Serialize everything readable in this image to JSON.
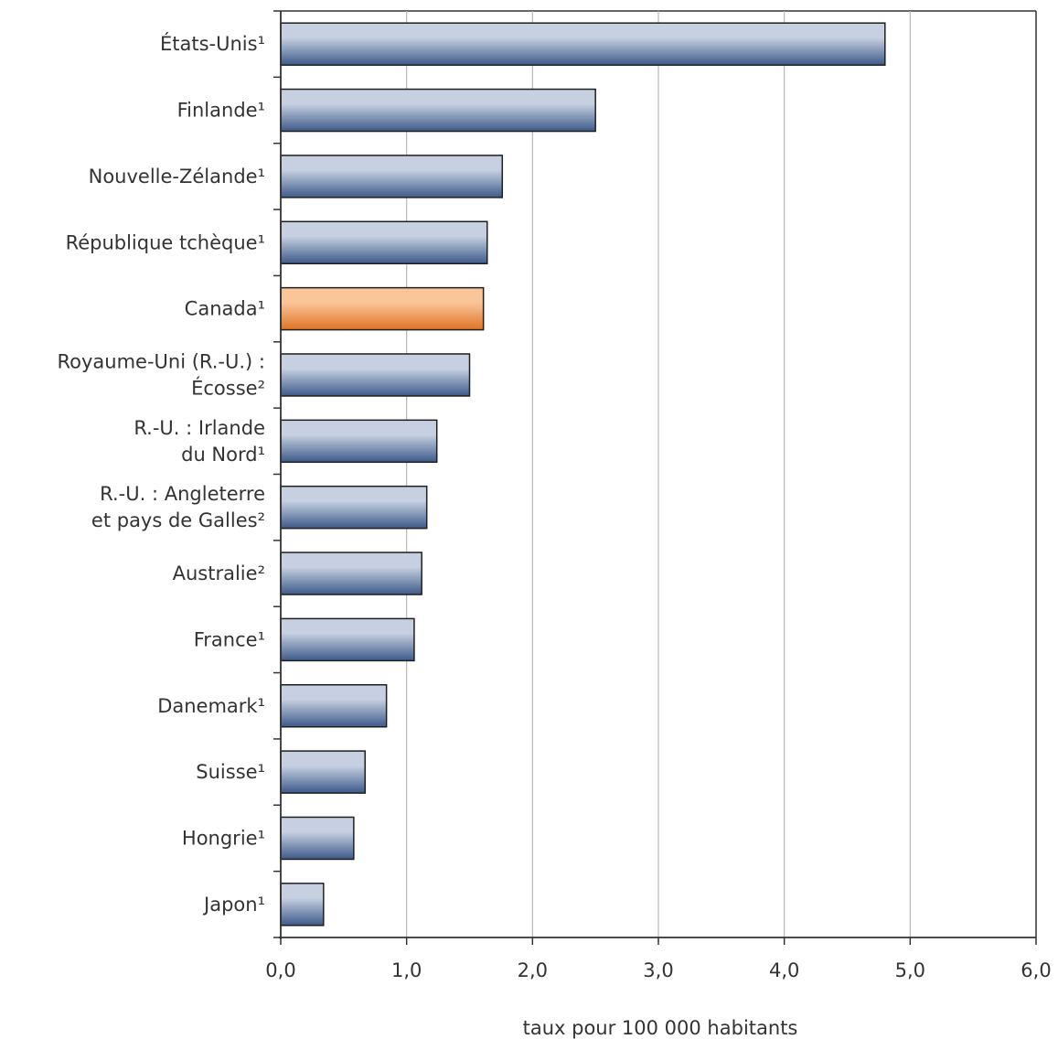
{
  "chart_data": {
    "type": "bar",
    "orientation": "horizontal",
    "categories": [
      [
        "États-Unis¹"
      ],
      [
        "Finlande¹"
      ],
      [
        "Nouvelle-Zélande¹"
      ],
      [
        "République tchèque¹"
      ],
      [
        "Canada¹"
      ],
      [
        "Royaume-Uni (R.-U.) :",
        "Écosse²"
      ],
      [
        "R.-U. : Irlande",
        "du Nord¹"
      ],
      [
        "R.-U. : Angleterre",
        "et pays de Galles²"
      ],
      [
        "Australie²"
      ],
      [
        "France¹"
      ],
      [
        "Danemark¹"
      ],
      [
        "Suisse¹"
      ],
      [
        "Hongrie¹"
      ],
      [
        "Japon¹"
      ]
    ],
    "values": [
      4.8,
      2.5,
      1.76,
      1.64,
      1.61,
      1.5,
      1.24,
      1.16,
      1.12,
      1.06,
      0.84,
      0.67,
      0.58,
      0.34
    ],
    "highlight_index": 4,
    "xlabel": "taux pour 100 000 habitants",
    "xlim": [
      0,
      6
    ],
    "ticks": [
      "0,0",
      "1,0",
      "2,0",
      "3,0",
      "4,0",
      "5,0",
      "6,0"
    ],
    "grid": "vertical",
    "colors": {
      "bar_light": "#c6d0e0",
      "bar_dark": "#3d5a8a",
      "highlight_light": "#fbc59a",
      "highlight_dark": "#de7425",
      "grid": "#b8b8b8",
      "axis": "#333333"
    }
  }
}
